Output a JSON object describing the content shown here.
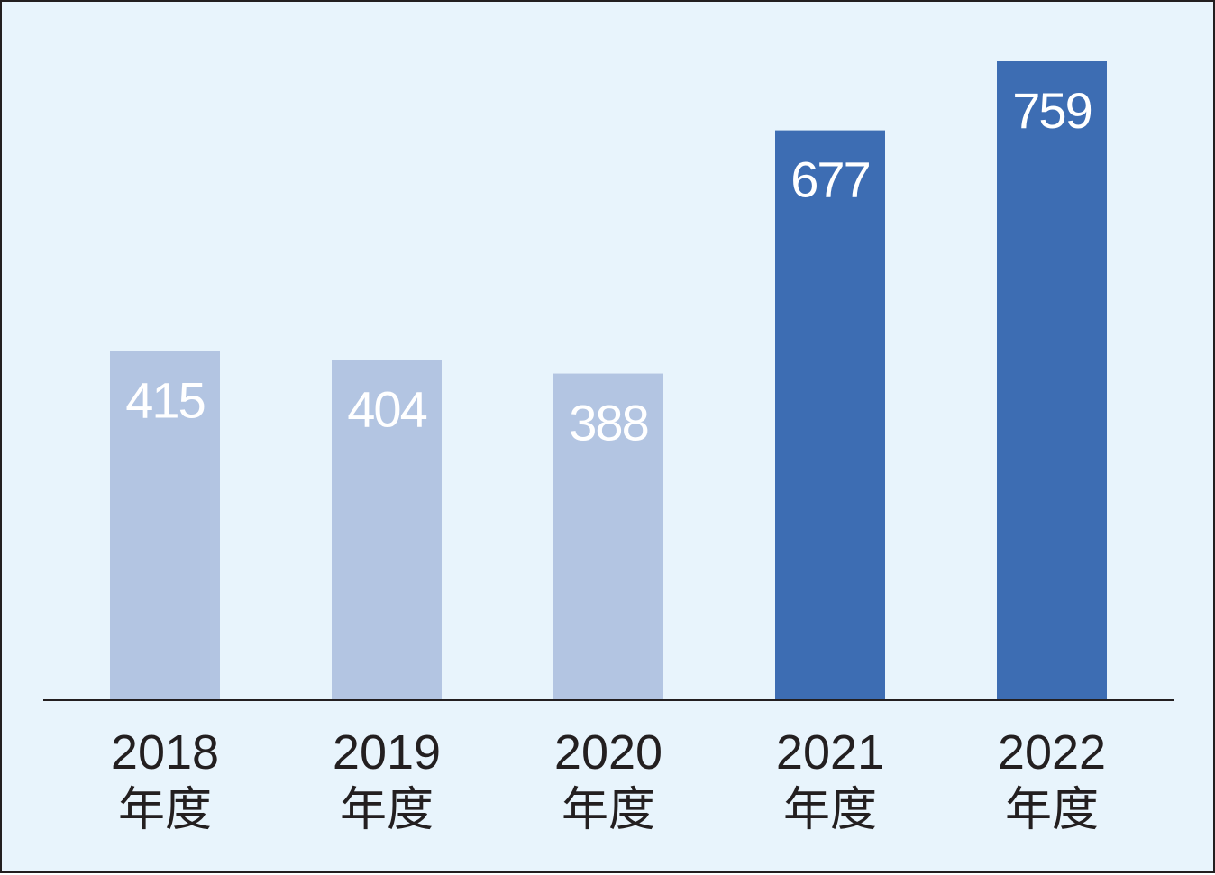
{
  "chart_data": {
    "type": "bar",
    "categories": [
      {
        "year": "2018",
        "unit": "年度"
      },
      {
        "year": "2019",
        "unit": "年度"
      },
      {
        "year": "2020",
        "unit": "年度"
      },
      {
        "year": "2021",
        "unit": "年度"
      },
      {
        "year": "2022",
        "unit": "年度"
      }
    ],
    "values": [
      415,
      404,
      388,
      677,
      759
    ],
    "value_labels": [
      "415",
      "404",
      "388",
      "677",
      "759"
    ],
    "bar_colors": [
      "#b3c5e2",
      "#b3c5e2",
      "#b3c5e2",
      "#3d6db3",
      "#3d6db3"
    ],
    "background_color": "#e8f4fc",
    "axis_color": "#231f20",
    "title": "",
    "xlabel": "",
    "ylabel": "",
    "ylim": [
      0,
      810
    ],
    "grid": false,
    "legend": "none"
  }
}
